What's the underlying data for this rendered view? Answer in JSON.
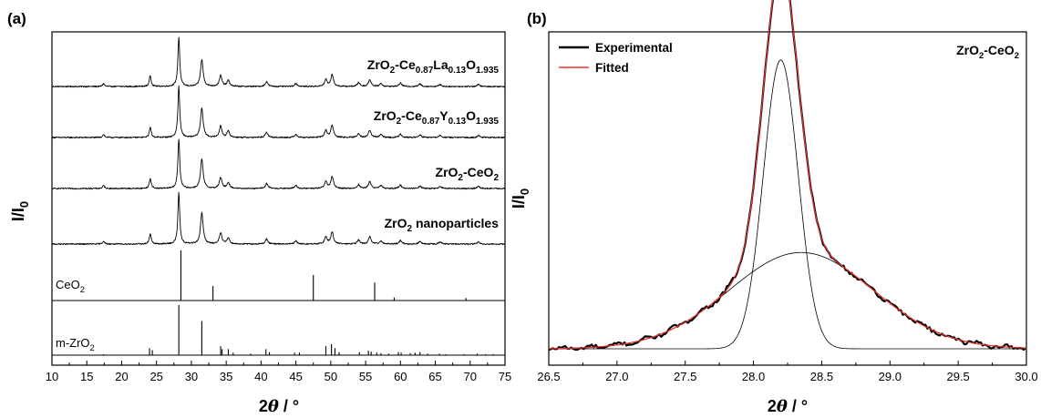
{
  "chart_data": [
    {
      "panel": "(a)",
      "type": "line",
      "xlabel": "2θ / °",
      "ylabel": "I/I0",
      "xlim": [
        10,
        75
      ],
      "xticks": [
        10,
        15,
        20,
        25,
        30,
        35,
        40,
        45,
        50,
        55,
        60,
        65,
        70,
        75
      ],
      "series": [
        {
          "name": "ZrO2-Ce0.87La0.13O1.935",
          "peaks": [
            [
              17.4,
              0.06
            ],
            [
              24.1,
              0.22
            ],
            [
              28.2,
              1.0
            ],
            [
              31.5,
              0.55
            ],
            [
              34.2,
              0.22
            ],
            [
              35.3,
              0.12
            ],
            [
              40.8,
              0.1
            ],
            [
              45.0,
              0.06
            ],
            [
              49.3,
              0.14
            ],
            [
              50.2,
              0.24
            ],
            [
              54.0,
              0.08
            ],
            [
              55.6,
              0.14
            ],
            [
              57.2,
              0.06
            ],
            [
              60.0,
              0.07
            ],
            [
              62.8,
              0.05
            ],
            [
              65.7,
              0.04
            ],
            [
              71.2,
              0.04
            ]
          ]
        },
        {
          "name": "ZrO2-Ce0.87Y0.13O1.935",
          "peaks": [
            [
              17.4,
              0.06
            ],
            [
              24.1,
              0.2
            ],
            [
              28.2,
              1.0
            ],
            [
              31.5,
              0.58
            ],
            [
              34.2,
              0.22
            ],
            [
              35.3,
              0.12
            ],
            [
              40.8,
              0.1
            ],
            [
              45.0,
              0.06
            ],
            [
              49.3,
              0.14
            ],
            [
              50.2,
              0.24
            ],
            [
              54.0,
              0.08
            ],
            [
              55.6,
              0.14
            ],
            [
              57.2,
              0.06
            ],
            [
              60.0,
              0.07
            ],
            [
              62.8,
              0.05
            ],
            [
              65.7,
              0.04
            ],
            [
              71.2,
              0.04
            ]
          ]
        },
        {
          "name": "ZrO2-CeO2",
          "peaks": [
            [
              17.4,
              0.06
            ],
            [
              24.1,
              0.2
            ],
            [
              28.2,
              1.0
            ],
            [
              31.5,
              0.6
            ],
            [
              34.2,
              0.22
            ],
            [
              35.3,
              0.12
            ],
            [
              40.8,
              0.1
            ],
            [
              45.0,
              0.06
            ],
            [
              49.3,
              0.14
            ],
            [
              50.2,
              0.24
            ],
            [
              54.0,
              0.08
            ],
            [
              55.6,
              0.14
            ],
            [
              57.2,
              0.06
            ],
            [
              60.0,
              0.07
            ],
            [
              62.8,
              0.05
            ],
            [
              65.7,
              0.04
            ],
            [
              71.2,
              0.04
            ]
          ]
        },
        {
          "name": "ZrO2 nanoparticles",
          "peaks": [
            [
              17.4,
              0.06
            ],
            [
              24.1,
              0.2
            ],
            [
              28.2,
              1.0
            ],
            [
              31.5,
              0.62
            ],
            [
              34.2,
              0.22
            ],
            [
              35.3,
              0.12
            ],
            [
              40.8,
              0.1
            ],
            [
              45.0,
              0.06
            ],
            [
              49.3,
              0.14
            ],
            [
              50.2,
              0.24
            ],
            [
              54.0,
              0.08
            ],
            [
              55.6,
              0.14
            ],
            [
              57.2,
              0.06
            ],
            [
              60.0,
              0.07
            ],
            [
              62.8,
              0.05
            ],
            [
              65.7,
              0.04
            ],
            [
              71.2,
              0.04
            ]
          ]
        }
      ],
      "reference_patterns": [
        {
          "name": "CeO2",
          "sticks": [
            [
              28.5,
              1.0
            ],
            [
              33.1,
              0.29
            ],
            [
              47.5,
              0.51
            ],
            [
              56.3,
              0.36
            ],
            [
              59.1,
              0.06
            ],
            [
              69.4,
              0.05
            ]
          ]
        },
        {
          "name": "m-ZrO2",
          "sticks": [
            [
              17.4,
              0.02
            ],
            [
              24.0,
              0.14
            ],
            [
              24.4,
              0.1
            ],
            [
              28.2,
              1.0
            ],
            [
              31.5,
              0.68
            ],
            [
              34.2,
              0.18
            ],
            [
              34.4,
              0.12
            ],
            [
              35.3,
              0.12
            ],
            [
              36.0,
              0.05
            ],
            [
              38.5,
              0.03
            ],
            [
              40.7,
              0.12
            ],
            [
              41.2,
              0.06
            ],
            [
              44.8,
              0.05
            ],
            [
              45.5,
              0.05
            ],
            [
              49.3,
              0.18
            ],
            [
              50.1,
              0.22
            ],
            [
              50.6,
              0.14
            ],
            [
              51.2,
              0.06
            ],
            [
              54.1,
              0.06
            ],
            [
              55.4,
              0.09
            ],
            [
              55.8,
              0.07
            ],
            [
              56.6,
              0.05
            ],
            [
              57.2,
              0.04
            ],
            [
              58.3,
              0.03
            ],
            [
              59.7,
              0.06
            ],
            [
              60.1,
              0.05
            ],
            [
              61.4,
              0.04
            ],
            [
              62.1,
              0.05
            ],
            [
              62.8,
              0.06
            ],
            [
              63.9,
              0.03
            ],
            [
              65.6,
              0.03
            ],
            [
              66.5,
              0.02
            ],
            [
              69.1,
              0.02
            ],
            [
              71.0,
              0.03
            ],
            [
              72.2,
              0.02
            ],
            [
              73.3,
              0.02
            ]
          ]
        }
      ]
    },
    {
      "panel": "(b)",
      "type": "line",
      "title": "ZrO2-CeO2",
      "xlabel": "2θ / °",
      "ylabel": "I/I0",
      "xlim": [
        26.5,
        30.0
      ],
      "xticks": [
        26.5,
        27.0,
        27.5,
        28.0,
        28.5,
        29.0,
        29.5,
        30.0
      ],
      "legend": {
        "position": "top-left",
        "entries": [
          "Experimental",
          "Fitted"
        ]
      },
      "series": [
        {
          "name": "Experimental",
          "color": "#000000"
        },
        {
          "name": "Fitted",
          "color": "#e8322d"
        }
      ],
      "fit_components": [
        {
          "shape": "gaussian",
          "center": 28.2,
          "fwhm": 0.3,
          "height": 0.75
        },
        {
          "shape": "gaussian",
          "center": 28.35,
          "fwhm": 1.25,
          "height": 0.25
        }
      ],
      "baseline": 0.0
    }
  ],
  "labels": {
    "panel_a": "(a)",
    "panel_b": "(b)",
    "a_traces": [
      {
        "main": "ZrO",
        "s1": "2",
        "mid": "-Ce",
        "s2": "0.87",
        "el": "La",
        "s3": "0.13",
        "o": "O",
        "s4": "1.935"
      },
      {
        "main": "ZrO",
        "s1": "2",
        "mid": "-Ce",
        "s2": "0.87",
        "el": "Y",
        "s3": "0.13",
        "o": "O",
        "s4": "1.935"
      }
    ],
    "a_trace3": {
      "main": "ZrO",
      "s1": "2",
      "mid": "-CeO",
      "s2": "2"
    },
    "a_trace4": {
      "main": "ZrO",
      "s1": "2",
      "rest": " nanoparticles"
    },
    "a_ref1": {
      "main": "CeO",
      "s1": "2"
    },
    "a_ref2": {
      "main": "m-ZrO",
      "s1": "2"
    },
    "b_title": {
      "main": "ZrO",
      "s1": "2",
      "mid": "-CeO",
      "s2": "2"
    },
    "ylabel_main": "I/I",
    "ylabel_sub": "0",
    "xlabel_num": "2",
    "xlabel_theta": "θ",
    "xlabel_rest": " / °",
    "legend_exp": "Experimental",
    "legend_fit": "Fitted"
  }
}
